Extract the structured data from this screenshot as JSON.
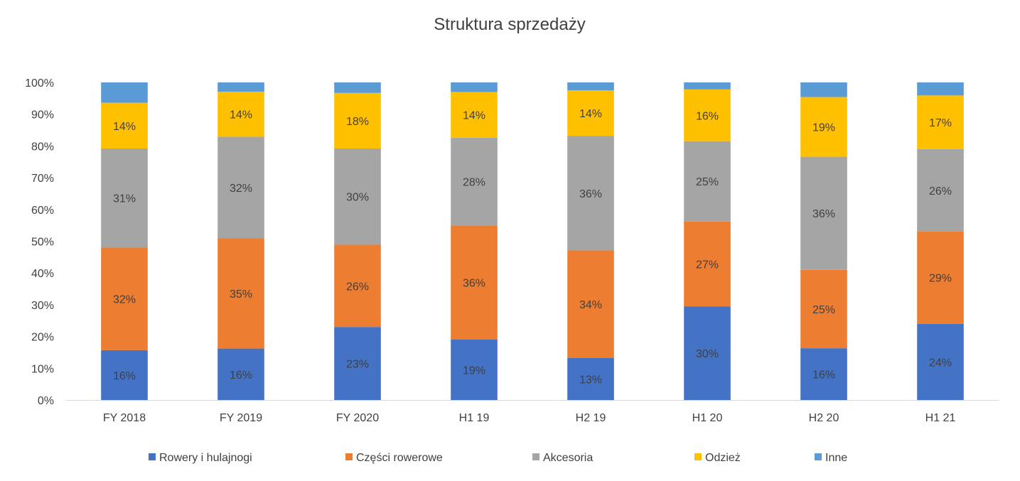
{
  "chart_data": {
    "type": "bar",
    "stacked": true,
    "normalized": true,
    "title": "Struktura sprzedaży",
    "categories": [
      "FY 2018",
      "FY 2019",
      "FY 2020",
      "H1 19",
      "H2 19",
      "H1 20",
      "H2 20",
      "H1 21"
    ],
    "ylim": [
      0,
      100
    ],
    "yticks": [
      "0%",
      "10%",
      "20%",
      "30%",
      "40%",
      "50%",
      "60%",
      "70%",
      "80%",
      "90%",
      "100%"
    ],
    "series": [
      {
        "name": "Rowery i hulajnogi",
        "color": "#4472c4",
        "values": [
          15.7,
          16.2,
          23.0,
          19.1,
          13.2,
          29.5,
          16.3,
          24.0
        ],
        "labels": [
          "16%",
          "16%",
          "23%",
          "19%",
          "13%",
          "30%",
          "16%",
          "24%"
        ]
      },
      {
        "name": "Części rowerowe",
        "color": "#ed7d31",
        "values": [
          32.3,
          34.7,
          25.9,
          35.9,
          33.9,
          26.7,
          24.7,
          29.1
        ],
        "labels": [
          "32%",
          "35%",
          "26%",
          "36%",
          "34%",
          "27%",
          "25%",
          "29%"
        ]
      },
      {
        "name": "Akcesoria",
        "color": "#a5a5a5",
        "values": [
          31.2,
          32.0,
          30.3,
          27.6,
          36.1,
          25.3,
          35.6,
          25.9
        ],
        "labels": [
          "31%",
          "32%",
          "30%",
          "28%",
          "36%",
          "25%",
          "36%",
          "26%"
        ]
      },
      {
        "name": "Odzież",
        "color": "#ffc000",
        "values": [
          14.4,
          14.2,
          17.5,
          14.4,
          14.3,
          16.3,
          18.8,
          16.9
        ],
        "labels": [
          "14%",
          "14%",
          "18%",
          "14%",
          "14%",
          "16%",
          "19%",
          "17%"
        ]
      },
      {
        "name": "Inne",
        "color": "#5b9bd5",
        "values": [
          6.4,
          2.9,
          3.3,
          3.0,
          2.5,
          2.2,
          4.6,
          4.1
        ],
        "labels": [
          "",
          "",
          "",
          "",
          "",
          "",
          "",
          ""
        ]
      }
    ],
    "legend": "bottom",
    "grid": false
  }
}
